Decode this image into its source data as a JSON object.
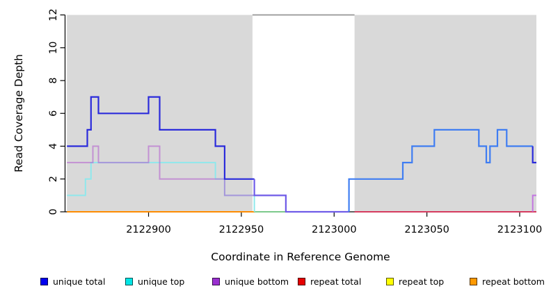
{
  "chart_data": {
    "type": "line",
    "subtype": "step-coverage",
    "title": "",
    "xlabel": "Coordinate in Reference Genome",
    "ylabel": "Read Coverage Depth",
    "xlim": [
      2122855,
      2123109
    ],
    "ylim": [
      0,
      12
    ],
    "x_ticks": [
      2122900,
      2122950,
      2123000,
      2123050,
      2123100
    ],
    "y_ticks": [
      0,
      2,
      4,
      6,
      8,
      10,
      12
    ],
    "grid": false,
    "legend_position": "bottom",
    "background_color": "#ffffff",
    "repeat_region_color": "#d9d9d9",
    "repeat_regions": [
      [
        2122856,
        2122956
      ],
      [
        2123011,
        2123109
      ]
    ],
    "gap_top_line": {
      "from": 2122956,
      "to": 2123011,
      "depth": 12,
      "color": "#949494"
    },
    "series": [
      {
        "name": "unique total",
        "color": "#0000ee",
        "steps": [
          [
            2122856,
            4
          ],
          [
            2122867,
            5
          ],
          [
            2122869,
            7
          ],
          [
            2122873,
            6
          ],
          [
            2122900,
            7
          ],
          [
            2122906,
            5
          ],
          [
            2122936,
            4
          ],
          [
            2122941,
            2
          ],
          [
            2122957,
            1
          ],
          [
            2122974,
            0
          ],
          [
            2123008,
            2
          ],
          [
            2123037,
            3
          ],
          [
            2123042,
            4
          ],
          [
            2123054,
            5
          ],
          [
            2123078,
            4
          ],
          [
            2123082,
            3
          ],
          [
            2123084,
            4
          ],
          [
            2123088,
            5
          ],
          [
            2123093,
            4
          ],
          [
            2123107,
            3
          ],
          [
            2123109,
            3
          ]
        ]
      },
      {
        "name": "unique top",
        "color": "#00e6e6",
        "steps": [
          [
            2122856,
            1
          ],
          [
            2122866,
            2
          ],
          [
            2122869,
            3
          ],
          [
            2122936,
            2
          ],
          [
            2122941,
            1
          ],
          [
            2122957,
            0
          ],
          [
            2123008,
            2
          ],
          [
            2123037,
            3
          ],
          [
            2123042,
            4
          ],
          [
            2123054,
            5
          ],
          [
            2123078,
            4
          ],
          [
            2123082,
            3
          ],
          [
            2123084,
            4
          ],
          [
            2123088,
            5
          ],
          [
            2123093,
            4
          ],
          [
            2123107,
            2
          ],
          [
            2123109,
            2
          ]
        ]
      },
      {
        "name": "unique bottom",
        "color": "#9a2fd0",
        "steps": [
          [
            2122856,
            3
          ],
          [
            2122870,
            4
          ],
          [
            2122873,
            3
          ],
          [
            2122900,
            4
          ],
          [
            2122906,
            2
          ],
          [
            2122941,
            1
          ],
          [
            2122974,
            0
          ],
          [
            2123107,
            1
          ],
          [
            2123109,
            1
          ]
        ]
      },
      {
        "name": "repeat total",
        "color": "#e60000",
        "steps": [
          [
            2122856,
            0
          ],
          [
            2123109,
            0
          ]
        ]
      },
      {
        "name": "repeat top",
        "color": "#ffff00",
        "steps": [
          [
            2122856,
            0
          ],
          [
            2123109,
            0
          ]
        ]
      },
      {
        "name": "repeat bottom",
        "color": "#ff9900",
        "steps": [
          [
            2122856,
            0
          ],
          [
            2123109,
            0
          ]
        ]
      }
    ],
    "render_layers": [
      {
        "name": "baseline-repeat-bottom-left",
        "color": "#ff8c00",
        "width": 2,
        "opacity": 1,
        "points": [
          [
            2122856,
            0
          ],
          [
            2122957,
            0
          ]
        ]
      },
      {
        "name": "baseline-gap-green",
        "color": "#7cc98b",
        "width": 2,
        "opacity": 1,
        "points": [
          [
            2122957,
            0
          ],
          [
            2122974,
            0
          ]
        ]
      },
      {
        "name": "baseline-repeat-total-right",
        "color": "#d63a5e",
        "width": 2,
        "opacity": 1,
        "points": [
          [
            2123011,
            0
          ],
          [
            2123109,
            0
          ]
        ]
      },
      {
        "name": "unique-top-line",
        "color": "#8fe8ec",
        "width": 2,
        "opacity": 1,
        "points": [
          [
            2122856,
            1
          ],
          [
            2122866,
            1
          ],
          [
            2122866,
            2
          ],
          [
            2122869,
            2
          ],
          [
            2122869,
            3
          ],
          [
            2122936,
            3
          ],
          [
            2122936,
            2
          ],
          [
            2122941,
            2
          ],
          [
            2122941,
            1
          ],
          [
            2122957,
            1
          ],
          [
            2122957,
            0
          ]
        ]
      },
      {
        "name": "unique-bottom-line",
        "color": "#b464cf",
        "width": 2,
        "opacity": 0.62,
        "points": [
          [
            2122856,
            3
          ],
          [
            2122870,
            3
          ],
          [
            2122870,
            4
          ],
          [
            2122873,
            4
          ],
          [
            2122873,
            3
          ],
          [
            2122900,
            3
          ],
          [
            2122900,
            4
          ],
          [
            2122906,
            4
          ],
          [
            2122906,
            2
          ],
          [
            2122941,
            2
          ],
          [
            2122941,
            1
          ],
          [
            2122974,
            1
          ],
          [
            2122974,
            0
          ]
        ]
      },
      {
        "name": "unique-bottom-edge-stub",
        "color": "#c06ae0",
        "width": 2,
        "opacity": 0.9,
        "points": [
          [
            2123107,
            0
          ],
          [
            2123107,
            1
          ],
          [
            2123109,
            1
          ]
        ]
      },
      {
        "name": "unique-total-left",
        "color": "#2b2bdb",
        "width": 2.2,
        "opacity": 1,
        "points": [
          [
            2122856,
            4
          ],
          [
            2122867,
            4
          ],
          [
            2122867,
            5
          ],
          [
            2122869,
            5
          ],
          [
            2122869,
            7
          ],
          [
            2122873,
            7
          ],
          [
            2122873,
            6
          ],
          [
            2122900,
            6
          ],
          [
            2122900,
            7
          ],
          [
            2122906,
            7
          ],
          [
            2122906,
            5
          ],
          [
            2122936,
            5
          ],
          [
            2122936,
            4
          ],
          [
            2122941,
            4
          ],
          [
            2122941,
            2
          ],
          [
            2122957,
            2
          ]
        ]
      },
      {
        "name": "unique-total-gap",
        "color": "#6f5ce8",
        "width": 2.2,
        "opacity": 1,
        "points": [
          [
            2122957,
            2
          ],
          [
            2122957,
            1
          ],
          [
            2122974,
            1
          ],
          [
            2122974,
            0
          ],
          [
            2123008,
            0
          ]
        ]
      },
      {
        "name": "unique-total-right",
        "color": "#3f7df2",
        "width": 2.2,
        "opacity": 1,
        "points": [
          [
            2123008,
            0
          ],
          [
            2123008,
            2
          ],
          [
            2123037,
            2
          ],
          [
            2123037,
            3
          ],
          [
            2123042,
            3
          ],
          [
            2123042,
            4
          ],
          [
            2123054,
            4
          ],
          [
            2123054,
            5
          ],
          [
            2123078,
            5
          ],
          [
            2123078,
            4
          ],
          [
            2123082,
            4
          ],
          [
            2123082,
            3
          ],
          [
            2123084,
            3
          ],
          [
            2123084,
            4
          ],
          [
            2123088,
            4
          ],
          [
            2123088,
            5
          ],
          [
            2123093,
            5
          ],
          [
            2123093,
            4
          ],
          [
            2123107,
            4
          ]
        ]
      },
      {
        "name": "unique-total-edge-stub",
        "color": "#2b2bdb",
        "width": 2.2,
        "opacity": 1,
        "points": [
          [
            2123107,
            4
          ],
          [
            2123107,
            3
          ],
          [
            2123109,
            3
          ]
        ]
      }
    ]
  },
  "legend": {
    "items": [
      {
        "label": "unique total",
        "color": "#0000ee"
      },
      {
        "label": "unique top",
        "color": "#00e6e6"
      },
      {
        "label": "unique bottom",
        "color": "#9a2fd0"
      },
      {
        "label": "repeat total",
        "color": "#e60000"
      },
      {
        "label": "repeat top",
        "color": "#ffff00"
      },
      {
        "label": "repeat bottom",
        "color": "#ff9900"
      }
    ]
  }
}
